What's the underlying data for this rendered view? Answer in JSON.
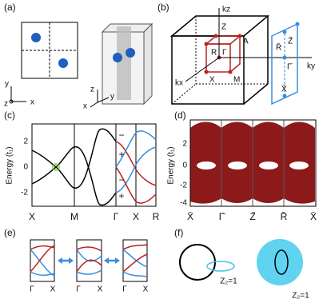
{
  "panel_a": {
    "label": "(a)",
    "axes_2d": [
      "y",
      "x",
      "z"
    ],
    "axes_3d": [
      "z",
      "x",
      "y"
    ]
  },
  "panel_b": {
    "label": "(b)",
    "points": [
      "Z",
      "A",
      "R",
      "Γ",
      "X",
      "M"
    ],
    "axes": [
      "kz",
      "kx",
      "ky"
    ],
    "surface_points": [
      "Z̄",
      "R̄",
      "Γ̄",
      "X̄"
    ]
  },
  "panel_c": {
    "label": "(c)",
    "y_label": "Energy (t₁)",
    "y_ticks": [
      "2",
      "0",
      "-2"
    ],
    "x_labels": [
      "X",
      "M",
      "Γ",
      "X",
      "R"
    ],
    "signs": [
      "−",
      "+",
      "−",
      "+"
    ]
  },
  "panel_d": {
    "label": "(d)",
    "y_label": "Energy (t₁)",
    "y_ticks": [
      "2",
      "0",
      "-2",
      "-4"
    ],
    "x_labels": [
      "X̄",
      "Γ̄",
      "Z̄",
      "R̄",
      "X̄"
    ]
  },
  "panel_e": {
    "label": "(e)",
    "x_labels": [
      [
        "Γ",
        "X"
      ],
      [
        "Γ",
        "X"
      ],
      [
        "Γ",
        "X"
      ]
    ]
  },
  "panel_f": {
    "label": "(f)",
    "notes": [
      "Z₂=1",
      "Z₂=1"
    ]
  }
}
